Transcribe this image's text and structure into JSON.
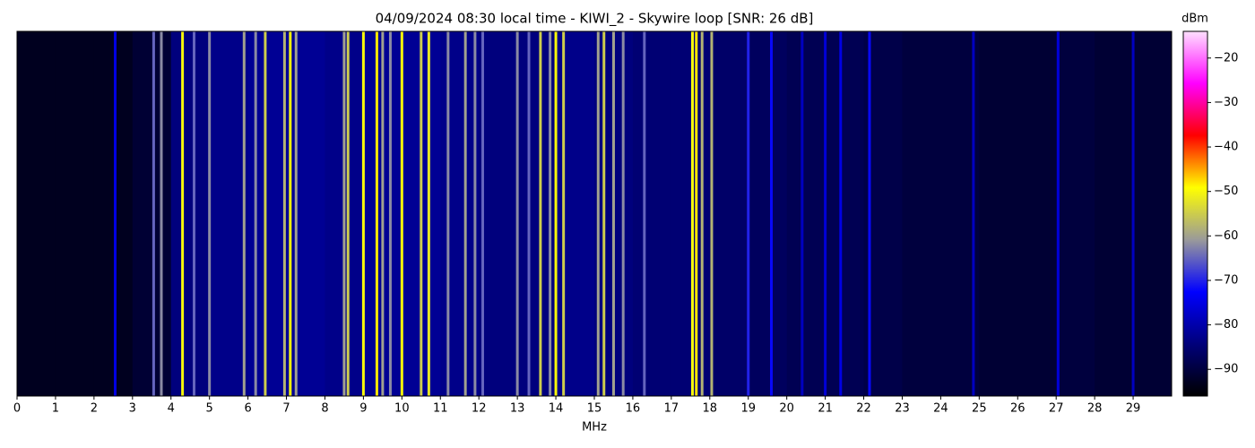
{
  "chart_data": {
    "type": "spectrogram",
    "title": "04/09/2024 08:30 local time - KIWI_2 - Skywire loop [SNR: 26 dB]",
    "x_label": "MHz",
    "colorbar_label": "dBm",
    "xlim": [
      0,
      30
    ],
    "xticks": [
      0,
      1,
      2,
      3,
      4,
      5,
      6,
      7,
      8,
      9,
      10,
      11,
      12,
      13,
      14,
      15,
      16,
      17,
      18,
      19,
      20,
      21,
      22,
      23,
      24,
      25,
      26,
      27,
      28,
      29
    ],
    "clim": [
      -96,
      -14
    ],
    "cticks": [
      {
        "value": -90,
        "label": "−90"
      },
      {
        "value": -80,
        "label": "−80"
      },
      {
        "value": -70,
        "label": "−70"
      },
      {
        "value": -60,
        "label": "−60"
      },
      {
        "value": -50,
        "label": "−50"
      },
      {
        "value": -40,
        "label": "−40"
      },
      {
        "value": -30,
        "label": "−30"
      },
      {
        "value": -20,
        "label": "−20"
      }
    ],
    "colormap": [
      "#000000",
      "#00007a",
      "#0000ff",
      "#9a9a9a",
      "#ffff00",
      "#ff0000",
      "#ff00ff",
      "#ffe0ff"
    ],
    "background": {
      "bins": [
        0,
        1,
        2,
        3,
        4,
        5,
        6,
        7,
        8,
        9,
        10,
        11,
        12,
        13,
        14,
        15,
        16,
        17,
        18,
        19,
        20,
        21,
        22,
        23,
        24,
        25,
        26,
        27,
        28,
        29,
        30
      ],
      "values": [
        -93,
        -93,
        -93,
        -91,
        -84,
        -83,
        -82,
        -82,
        -83,
        -82,
        -82,
        -83,
        -84,
        -84,
        -83,
        -84,
        -85,
        -85,
        -86,
        -87,
        -88,
        -88,
        -89,
        -90,
        -90,
        -91,
        -91,
        -90,
        -91,
        -91
      ]
    },
    "signals": {
      "x": [
        2.55,
        3.55,
        3.75,
        4.3,
        4.6,
        5.0,
        5.9,
        6.2,
        6.45,
        6.95,
        7.1,
        7.25,
        8.5,
        8.6,
        9.0,
        9.35,
        9.5,
        9.7,
        10.0,
        10.5,
        10.7,
        11.2,
        11.65,
        11.9,
        12.1,
        13.0,
        13.3,
        13.6,
        13.85,
        14.0,
        14.2,
        15.1,
        15.25,
        15.5,
        15.75,
        16.3,
        17.55,
        17.65,
        17.8,
        18.05,
        19.0,
        19.6,
        20.4,
        21.0,
        21.4,
        22.15,
        24.85,
        27.05,
        29.0
      ],
      "values": [
        -75,
        -65,
        -62,
        -50,
        -65,
        -62,
        -60,
        -62,
        -55,
        -58,
        -50,
        -60,
        -60,
        -55,
        -50,
        -48,
        -60,
        -62,
        -50,
        -55,
        -52,
        -62,
        -60,
        -62,
        -65,
        -62,
        -65,
        -55,
        -62,
        -50,
        -55,
        -60,
        -55,
        -60,
        -62,
        -65,
        -50,
        -48,
        -58,
        -58,
        -70,
        -72,
        -78,
        -76,
        -75,
        -72,
        -78,
        -76,
        -78
      ]
    }
  }
}
